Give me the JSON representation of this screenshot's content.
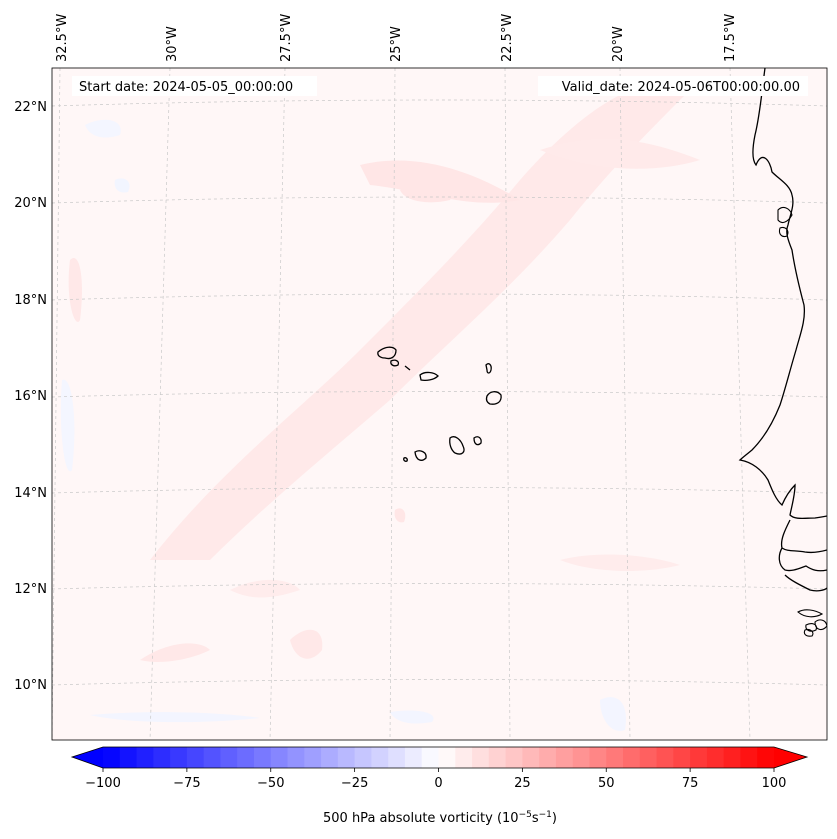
{
  "header": {
    "start_date": "Start date: 2024-05-05_00:00:00",
    "valid_date": "Valid_date: 2024-05-06T00:00:00.00"
  },
  "longitude_labels": [
    "32.5°W",
    "30°W",
    "27.5°W",
    "25°W",
    "22.5°W",
    "20°W",
    "17.5°W"
  ],
  "latitude_labels": [
    "22°N",
    "20°N",
    "18°N",
    "16°N",
    "14°N",
    "12°N",
    "10°N"
  ],
  "colorbar": {
    "label": "500 hPa absolute vorticity (10",
    "label_exp1": "−5",
    "label_mid": "s",
    "label_exp2": "−1",
    "label_end": ")",
    "ticks": [
      "−100",
      "−75",
      "−50",
      "−25",
      "0",
      "25",
      "50",
      "75",
      "100"
    ],
    "range": [
      -100,
      100
    ],
    "colors": {
      "negative": "#0000ff",
      "zero": "#ffffff",
      "positive": "#ff0000"
    }
  },
  "colors": {
    "field_background": "#fff7f7",
    "band": "#ffe9e9",
    "coastline": "#000000",
    "gridline": "#c8c8c8"
  }
}
